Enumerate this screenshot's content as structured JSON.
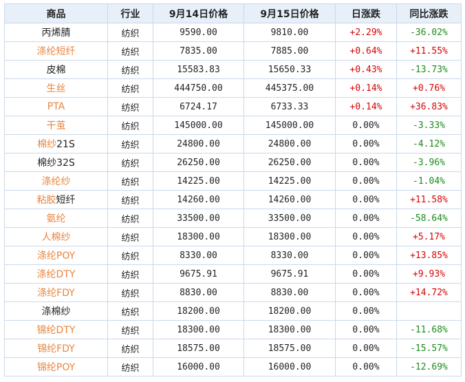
{
  "headers": [
    "商品",
    "行业",
    "9月14日价格",
    "9月15日价格",
    "日涨跌",
    "同比涨跌"
  ],
  "colors": {
    "link": "#e8843c",
    "up": "#d80000",
    "down": "#1a8a1a"
  },
  "rows": [
    {
      "name": [
        {
          "text": "丙烯腈",
          "link": false
        }
      ],
      "sector": "纺织",
      "p1": "9590.00",
      "p2": "9810.00",
      "day": "+2.29%",
      "day_dir": "up",
      "yoy": "-36.02%",
      "yoy_dir": "down"
    },
    {
      "name": [
        {
          "text": "涤纶短纤",
          "link": true
        }
      ],
      "sector": "纺织",
      "p1": "7835.00",
      "p2": "7885.00",
      "day": "+0.64%",
      "day_dir": "up",
      "yoy": "+11.55%",
      "yoy_dir": "up"
    },
    {
      "name": [
        {
          "text": "皮棉",
          "link": false
        }
      ],
      "sector": "纺织",
      "p1": "15583.83",
      "p2": "15650.33",
      "day": "+0.43%",
      "day_dir": "up",
      "yoy": "-13.73%",
      "yoy_dir": "down"
    },
    {
      "name": [
        {
          "text": "生丝",
          "link": true
        }
      ],
      "sector": "纺织",
      "p1": "444750.00",
      "p2": "445375.00",
      "day": "+0.14%",
      "day_dir": "up",
      "yoy": "+0.76%",
      "yoy_dir": "up"
    },
    {
      "name": [
        {
          "text": "PTA",
          "link": true
        }
      ],
      "sector": "纺织",
      "p1": "6724.17",
      "p2": "6733.33",
      "day": "+0.14%",
      "day_dir": "up",
      "yoy": "+36.83%",
      "yoy_dir": "up"
    },
    {
      "name": [
        {
          "text": "干茧",
          "link": true
        }
      ],
      "sector": "纺织",
      "p1": "145000.00",
      "p2": "145000.00",
      "day": "0.00%",
      "day_dir": "flat",
      "yoy": "-3.33%",
      "yoy_dir": "down"
    },
    {
      "name": [
        {
          "text": "棉纱",
          "link": true
        },
        {
          "text": "21S",
          "link": false
        }
      ],
      "sector": "纺织",
      "p1": "24800.00",
      "p2": "24800.00",
      "day": "0.00%",
      "day_dir": "flat",
      "yoy": "-4.12%",
      "yoy_dir": "down"
    },
    {
      "name": [
        {
          "text": "棉纱32S",
          "link": false
        }
      ],
      "sector": "纺织",
      "p1": "26250.00",
      "p2": "26250.00",
      "day": "0.00%",
      "day_dir": "flat",
      "yoy": "-3.96%",
      "yoy_dir": "down"
    },
    {
      "name": [
        {
          "text": "涤纶纱",
          "link": true
        }
      ],
      "sector": "纺织",
      "p1": "14225.00",
      "p2": "14225.00",
      "day": "0.00%",
      "day_dir": "flat",
      "yoy": "-1.04%",
      "yoy_dir": "down"
    },
    {
      "name": [
        {
          "text": "粘胶",
          "link": true
        },
        {
          "text": "短纤",
          "link": false
        }
      ],
      "sector": "纺织",
      "p1": "14260.00",
      "p2": "14260.00",
      "day": "0.00%",
      "day_dir": "flat",
      "yoy": "+11.58%",
      "yoy_dir": "up"
    },
    {
      "name": [
        {
          "text": "氨纶",
          "link": true
        }
      ],
      "sector": "纺织",
      "p1": "33500.00",
      "p2": "33500.00",
      "day": "0.00%",
      "day_dir": "flat",
      "yoy": "-58.64%",
      "yoy_dir": "down"
    },
    {
      "name": [
        {
          "text": "人棉纱",
          "link": true
        }
      ],
      "sector": "纺织",
      "p1": "18300.00",
      "p2": "18300.00",
      "day": "0.00%",
      "day_dir": "flat",
      "yoy": "+5.17%",
      "yoy_dir": "up"
    },
    {
      "name": [
        {
          "text": "涤纶POY",
          "link": true
        }
      ],
      "sector": "纺织",
      "p1": "8330.00",
      "p2": "8330.00",
      "day": "0.00%",
      "day_dir": "flat",
      "yoy": "+13.85%",
      "yoy_dir": "up"
    },
    {
      "name": [
        {
          "text": "涤纶DTY",
          "link": true
        }
      ],
      "sector": "纺织",
      "p1": "9675.91",
      "p2": "9675.91",
      "day": "0.00%",
      "day_dir": "flat",
      "yoy": "+9.93%",
      "yoy_dir": "up"
    },
    {
      "name": [
        {
          "text": "涤纶FDY",
          "link": true
        }
      ],
      "sector": "纺织",
      "p1": "8830.00",
      "p2": "8830.00",
      "day": "0.00%",
      "day_dir": "flat",
      "yoy": "+14.72%",
      "yoy_dir": "up"
    },
    {
      "name": [
        {
          "text": "涤棉纱",
          "link": false
        }
      ],
      "sector": "纺织",
      "p1": "18200.00",
      "p2": "18200.00",
      "day": "0.00%",
      "day_dir": "flat",
      "yoy": "",
      "yoy_dir": "flat"
    },
    {
      "name": [
        {
          "text": "锦纶DTY",
          "link": true
        }
      ],
      "sector": "纺织",
      "p1": "18300.00",
      "p2": "18300.00",
      "day": "0.00%",
      "day_dir": "flat",
      "yoy": "-11.68%",
      "yoy_dir": "down"
    },
    {
      "name": [
        {
          "text": "锦纶FDY",
          "link": true
        }
      ],
      "sector": "纺织",
      "p1": "18575.00",
      "p2": "18575.00",
      "day": "0.00%",
      "day_dir": "flat",
      "yoy": "-15.57%",
      "yoy_dir": "down"
    },
    {
      "name": [
        {
          "text": "锦纶POY",
          "link": true
        }
      ],
      "sector": "纺织",
      "p1": "16000.00",
      "p2": "16000.00",
      "day": "0.00%",
      "day_dir": "flat",
      "yoy": "-12.69%",
      "yoy_dir": "down"
    }
  ]
}
